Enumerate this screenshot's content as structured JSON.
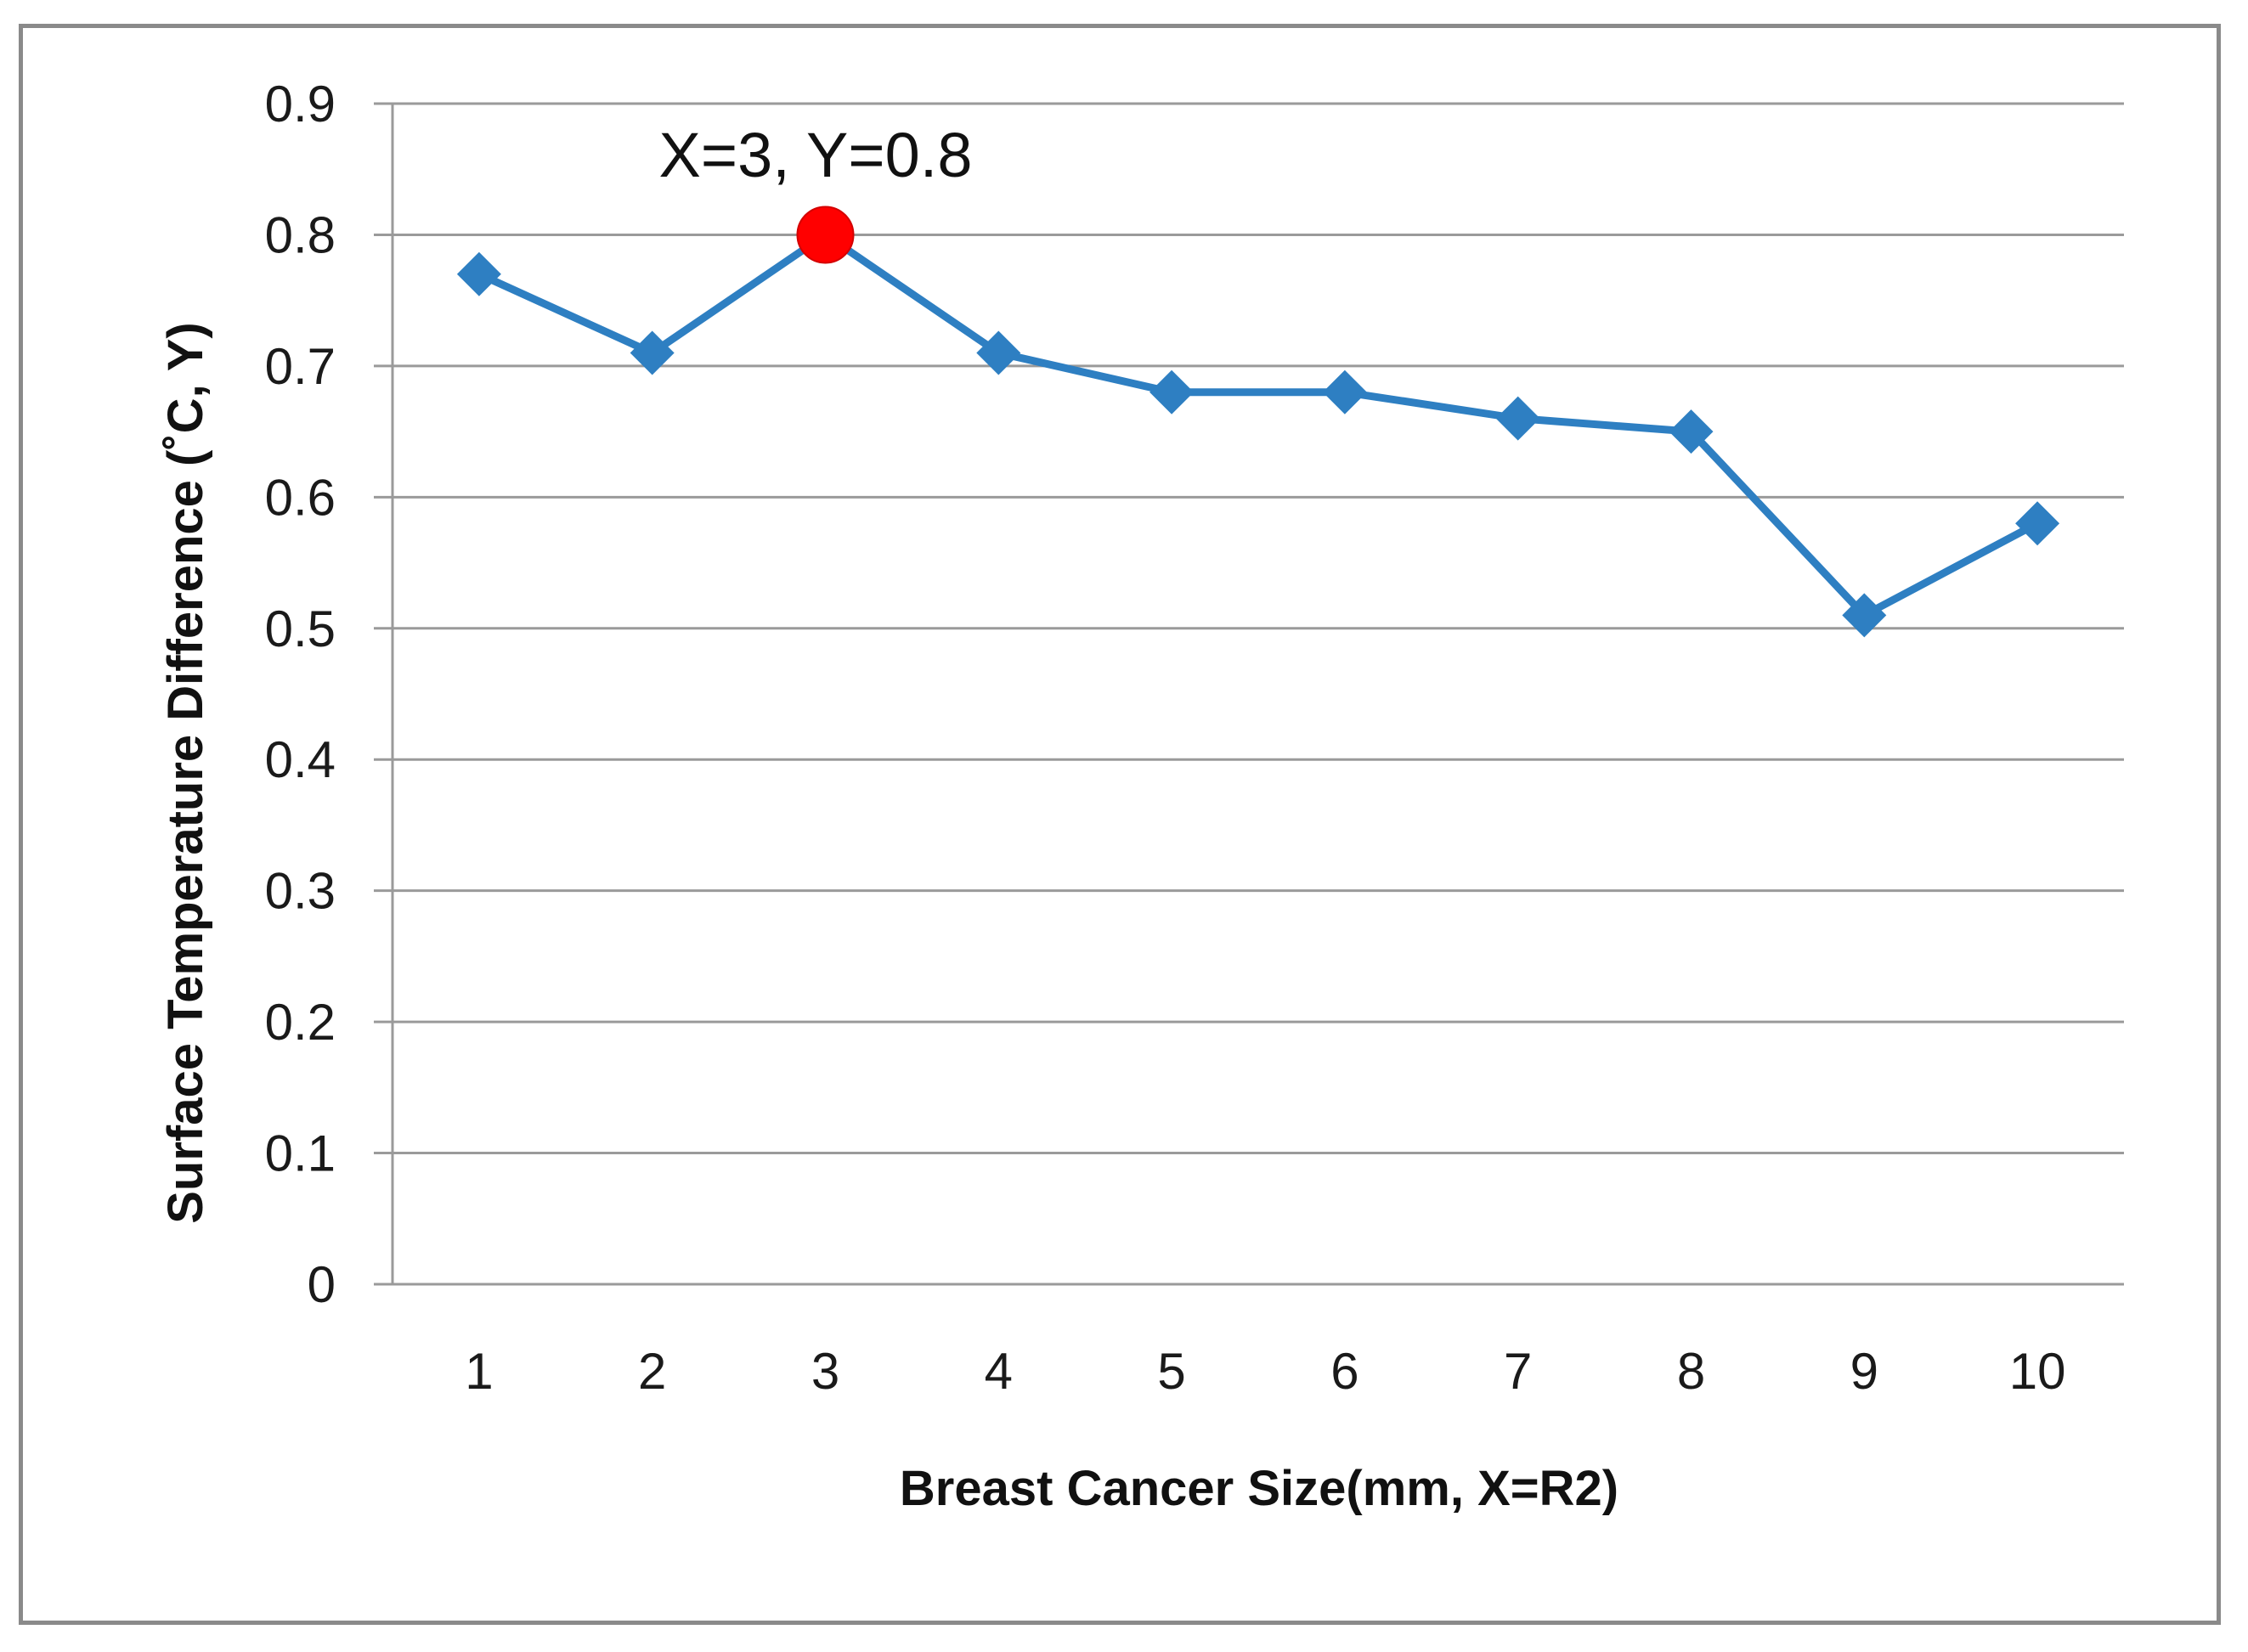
{
  "chart_data": {
    "type": "line",
    "title": "",
    "xlabel": "Breast Cancer Size(mm, X=R2)",
    "ylabel": "Surface Temperature Difference (˚C, Y)",
    "categories": [
      "1",
      "2",
      "3",
      "4",
      "5",
      "6",
      "7",
      "8",
      "9",
      "10"
    ],
    "x": [
      1,
      2,
      3,
      4,
      5,
      6,
      7,
      8,
      9,
      10
    ],
    "series": [
      {
        "name": "Surface Temperature Difference",
        "values": [
          0.77,
          0.71,
          0.8,
          0.71,
          0.68,
          0.68,
          0.66,
          0.65,
          0.51,
          0.58
        ],
        "color": "#2e7fc2",
        "marker": "diamond"
      }
    ],
    "ylim": [
      0,
      0.9
    ],
    "yticks": [
      "0",
      "0.1",
      "0.2",
      "0.3",
      "0.4",
      "0.5",
      "0.6",
      "0.7",
      "0.8",
      "0.9"
    ],
    "grid": true,
    "legend": "none",
    "highlight": {
      "x": 3,
      "y": 0.8,
      "label": "X=3, Y=0.8",
      "color": "#ff0000"
    },
    "gridline_color": "#9a9a9a"
  }
}
